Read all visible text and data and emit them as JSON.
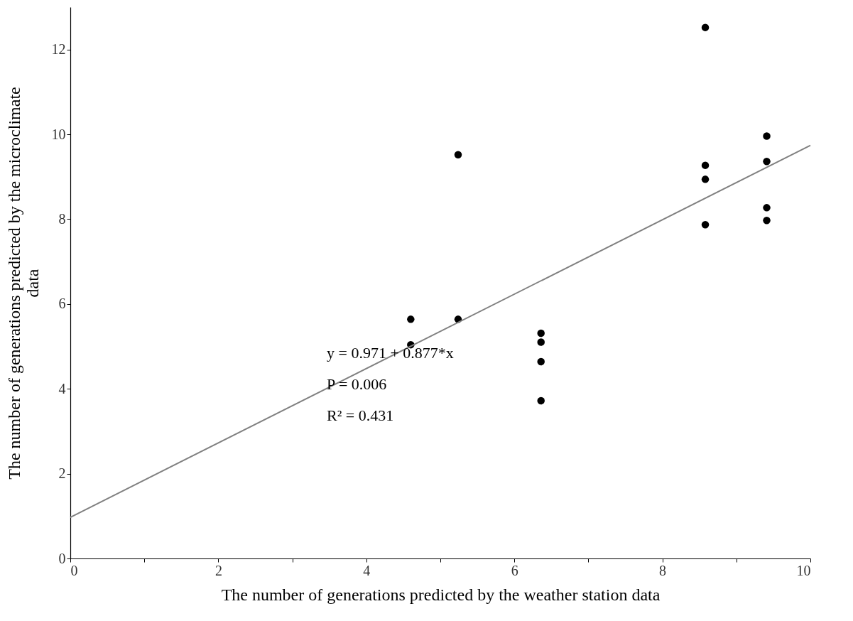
{
  "chart_data": {
    "type": "scatter",
    "xlabel": "The number of generations predicted by the weather station data",
    "ylabel": "The number of generations predicted by the microclimate data",
    "xlim": [
      0,
      10
    ],
    "ylim": [
      0,
      13
    ],
    "xticks": [
      0,
      {
        "value": 1,
        "label": null
      },
      2,
      {
        "value": 3,
        "label": null
      },
      4,
      {
        "value": 5,
        "label": null
      },
      6,
      {
        "value": 7,
        "label": null
      },
      8,
      {
        "value": 9,
        "label": null
      },
      10
    ],
    "yticks": [
      0,
      2,
      4,
      6,
      8,
      10,
      12
    ],
    "grid": false,
    "series": [
      {
        "marker": "circle",
        "color": "#000000",
        "x": [
          4.6,
          4.6,
          5.24,
          5.24,
          6.36,
          6.36,
          6.36,
          6.36,
          8.58,
          8.58,
          8.58,
          8.58,
          9.41,
          9.41,
          9.41,
          9.41
        ],
        "values": [
          5.64,
          5.04,
          9.52,
          5.64,
          5.31,
          5.1,
          4.64,
          3.72,
          12.52,
          9.27,
          8.94,
          7.87,
          9.96,
          9.36,
          8.27,
          7.97
        ]
      },
      {
        "type": "line",
        "color": "#808080",
        "x": [
          0,
          10
        ],
        "values": [
          0.97,
          9.74
        ]
      }
    ],
    "annotations": [
      "y = 0.971 + 0.877*x",
      "P = 0.006",
      "R² = 0.431"
    ]
  }
}
